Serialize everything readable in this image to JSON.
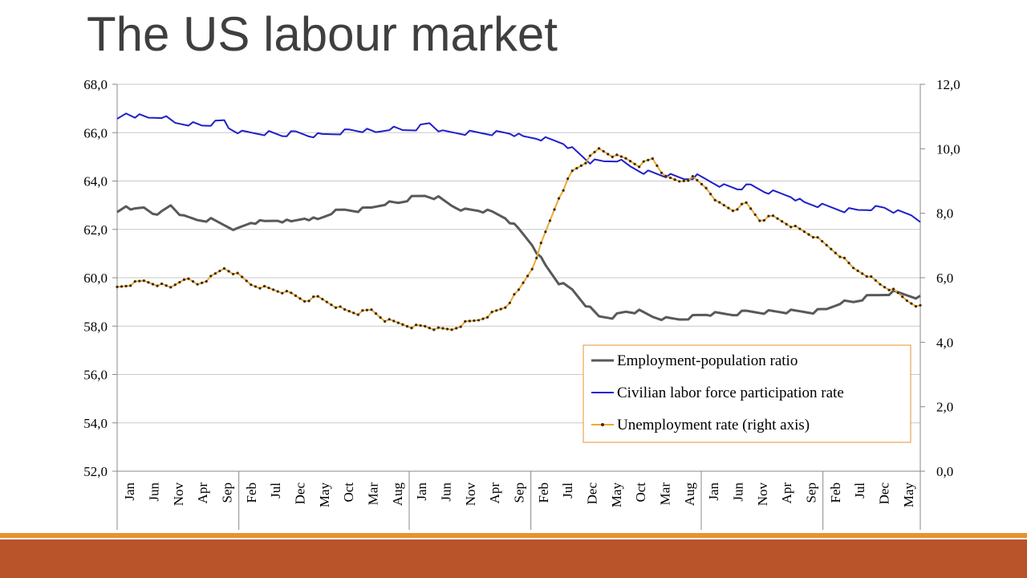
{
  "slide": {
    "title": "The US labour market",
    "colors": {
      "title": "#3f3f3f",
      "footer_band": "#b9532a",
      "footer_line": "#e8912f"
    }
  },
  "chart_data": {
    "type": "line",
    "title": "",
    "xlabel": "",
    "ylabel": "",
    "y_left": {
      "ylim": [
        52,
        68
      ],
      "ticks": [
        "52,0",
        "54,0",
        "56,0",
        "58,0",
        "60,0",
        "62,0",
        "64,0",
        "66,0",
        "68,0"
      ]
    },
    "y_right": {
      "ylim": [
        0,
        12
      ],
      "ticks": [
        "0,0",
        "2,0",
        "4,0",
        "6,0",
        "8,0",
        "10,0",
        "12,0"
      ]
    },
    "x_tick_labels": [
      "Jan",
      "Jun",
      "Nov",
      "Apr",
      "Sep",
      "Feb",
      "Jul",
      "Dec",
      "May",
      "Oct",
      "Mar",
      "Aug",
      "Jan",
      "Jun",
      "Nov",
      "Apr",
      "Sep",
      "Feb",
      "Jul",
      "Dec",
      "May",
      "Oct",
      "Mar",
      "Aug",
      "Jan",
      "Jun",
      "Nov",
      "Apr",
      "Sep",
      "Feb",
      "Jul",
      "Dec",
      "May"
    ],
    "grid": "horizontal",
    "legend": {
      "placement": "bottom-right",
      "border_color": "#e8912f"
    },
    "series": [
      {
        "name": "Employment-population ratio",
        "axis": "left",
        "color": "#595959",
        "anchors": [
          [
            0,
            62.7
          ],
          [
            2,
            63.0
          ],
          [
            4,
            62.8
          ],
          [
            6,
            62.9
          ],
          [
            8,
            62.7
          ],
          [
            10,
            62.7
          ],
          [
            12,
            63.0
          ],
          [
            15,
            62.5
          ],
          [
            18,
            62.4
          ],
          [
            21,
            62.4
          ],
          [
            24,
            62.2
          ],
          [
            27,
            62.0
          ],
          [
            30,
            62.3
          ],
          [
            33,
            62.3
          ],
          [
            36,
            62.4
          ],
          [
            39,
            62.3
          ],
          [
            42,
            62.5
          ],
          [
            45,
            62.4
          ],
          [
            48,
            62.7
          ],
          [
            51,
            62.8
          ],
          [
            54,
            62.8
          ],
          [
            57,
            62.9
          ],
          [
            60,
            63.1
          ],
          [
            63,
            63.1
          ],
          [
            66,
            63.3
          ],
          [
            69,
            63.4
          ],
          [
            72,
            63.3
          ],
          [
            75,
            63.0
          ],
          [
            78,
            62.8
          ],
          [
            81,
            62.8
          ],
          [
            84,
            62.7
          ],
          [
            87,
            62.5
          ],
          [
            90,
            62.0
          ],
          [
            93,
            61.4
          ],
          [
            96,
            60.5
          ],
          [
            99,
            59.8
          ],
          [
            102,
            59.5
          ],
          [
            105,
            58.9
          ],
          [
            108,
            58.4
          ],
          [
            111,
            58.4
          ],
          [
            114,
            58.6
          ],
          [
            117,
            58.6
          ],
          [
            120,
            58.4
          ],
          [
            123,
            58.3
          ],
          [
            126,
            58.3
          ],
          [
            129,
            58.4
          ],
          [
            132,
            58.5
          ],
          [
            135,
            58.5
          ],
          [
            138,
            58.5
          ],
          [
            141,
            58.6
          ],
          [
            144,
            58.6
          ],
          [
            147,
            58.6
          ],
          [
            150,
            58.6
          ],
          [
            153,
            58.6
          ],
          [
            156,
            58.6
          ],
          [
            159,
            58.7
          ],
          [
            162,
            59.0
          ],
          [
            165,
            59.0
          ],
          [
            168,
            59.2
          ],
          [
            171,
            59.3
          ],
          [
            174,
            59.4
          ],
          [
            177,
            59.3
          ],
          [
            180,
            59.2
          ]
        ]
      },
      {
        "name": "Civilian labor force participation rate",
        "axis": "left",
        "color": "#1f1fc8",
        "anchors": [
          [
            0,
            66.5
          ],
          [
            2,
            66.8
          ],
          [
            4,
            66.7
          ],
          [
            7,
            66.6
          ],
          [
            10,
            66.7
          ],
          [
            13,
            66.4
          ],
          [
            16,
            66.4
          ],
          [
            19,
            66.3
          ],
          [
            22,
            66.4
          ],
          [
            24,
            66.5
          ],
          [
            25,
            66.2
          ],
          [
            28,
            66.0
          ],
          [
            31,
            66.0
          ],
          [
            34,
            66.0
          ],
          [
            37,
            65.9
          ],
          [
            40,
            66.0
          ],
          [
            43,
            65.9
          ],
          [
            46,
            65.9
          ],
          [
            49,
            66.0
          ],
          [
            52,
            66.1
          ],
          [
            55,
            66.1
          ],
          [
            58,
            66.0
          ],
          [
            61,
            66.2
          ],
          [
            64,
            66.1
          ],
          [
            67,
            66.2
          ],
          [
            70,
            66.4
          ],
          [
            73,
            66.0
          ],
          [
            76,
            66.0
          ],
          [
            79,
            66.0
          ],
          [
            82,
            66.0
          ],
          [
            85,
            66.0
          ],
          [
            88,
            66.0
          ],
          [
            91,
            65.8
          ],
          [
            94,
            65.8
          ],
          [
            97,
            65.7
          ],
          [
            100,
            65.6
          ],
          [
            103,
            65.2
          ],
          [
            106,
            64.8
          ],
          [
            109,
            64.8
          ],
          [
            112,
            64.9
          ],
          [
            115,
            64.6
          ],
          [
            118,
            64.4
          ],
          [
            121,
            64.3
          ],
          [
            124,
            64.2
          ],
          [
            127,
            64.1
          ],
          [
            130,
            64.2
          ],
          [
            133,
            64.0
          ],
          [
            136,
            63.8
          ],
          [
            139,
            63.7
          ],
          [
            142,
            63.8
          ],
          [
            145,
            63.6
          ],
          [
            148,
            63.5
          ],
          [
            151,
            63.4
          ],
          [
            154,
            63.1
          ],
          [
            157,
            63.0
          ],
          [
            160,
            62.9
          ],
          [
            163,
            62.8
          ],
          [
            166,
            62.8
          ],
          [
            169,
            62.9
          ],
          [
            172,
            62.9
          ],
          [
            175,
            62.7
          ],
          [
            178,
            62.6
          ],
          [
            180,
            62.4
          ]
        ]
      },
      {
        "name": "Unemployment rate (right axis)",
        "axis": "right",
        "color": "#f0a830",
        "marker_color": "#3a2a10",
        "anchors": [
          [
            0,
            5.7
          ],
          [
            3,
            5.8
          ],
          [
            6,
            5.9
          ],
          [
            9,
            5.8
          ],
          [
            12,
            5.7
          ],
          [
            15,
            6.0
          ],
          [
            18,
            5.8
          ],
          [
            21,
            6.0
          ],
          [
            24,
            6.3
          ],
          [
            27,
            6.1
          ],
          [
            30,
            5.8
          ],
          [
            33,
            5.7
          ],
          [
            36,
            5.6
          ],
          [
            39,
            5.5
          ],
          [
            42,
            5.3
          ],
          [
            45,
            5.4
          ],
          [
            48,
            5.2
          ],
          [
            51,
            5.0
          ],
          [
            54,
            4.9
          ],
          [
            57,
            5.0
          ],
          [
            60,
            4.7
          ],
          [
            63,
            4.6
          ],
          [
            66,
            4.5
          ],
          [
            69,
            4.5
          ],
          [
            72,
            4.4
          ],
          [
            75,
            4.4
          ],
          [
            78,
            4.6
          ],
          [
            81,
            4.7
          ],
          [
            84,
            4.9
          ],
          [
            87,
            5.1
          ],
          [
            90,
            5.6
          ],
          [
            93,
            6.3
          ],
          [
            96,
            7.4
          ],
          [
            99,
            8.5
          ],
          [
            102,
            9.3
          ],
          [
            105,
            9.6
          ],
          [
            108,
            10.0
          ],
          [
            111,
            9.8
          ],
          [
            114,
            9.7
          ],
          [
            117,
            9.5
          ],
          [
            120,
            9.7
          ],
          [
            123,
            9.1
          ],
          [
            126,
            9.0
          ],
          [
            129,
            9.1
          ],
          [
            132,
            8.8
          ],
          [
            135,
            8.3
          ],
          [
            138,
            8.1
          ],
          [
            141,
            8.3
          ],
          [
            144,
            7.8
          ],
          [
            147,
            7.9
          ],
          [
            150,
            7.7
          ],
          [
            153,
            7.5
          ],
          [
            156,
            7.3
          ],
          [
            159,
            7.0
          ],
          [
            162,
            6.7
          ],
          [
            165,
            6.3
          ],
          [
            168,
            6.1
          ],
          [
            171,
            5.8
          ],
          [
            174,
            5.6
          ],
          [
            177,
            5.3
          ],
          [
            180,
            5.1
          ]
        ]
      }
    ]
  }
}
